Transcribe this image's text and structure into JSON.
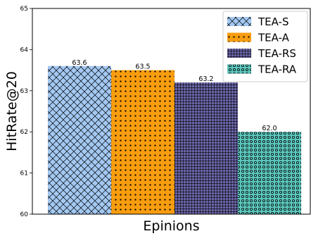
{
  "chart_data": {
    "type": "bar",
    "xlabel": "Epinions",
    "ylabel": "HitRate@20",
    "ylim": [
      60,
      65
    ],
    "yticks": [
      60,
      61,
      62,
      63,
      64,
      65
    ],
    "grid": false,
    "legend_position": "top-right",
    "series": [
      {
        "name": "TEA-S",
        "values": [
          63.6
        ],
        "color": "#a3c8f2",
        "hatch": "crosshatch-diagonal",
        "value_label": "63.6"
      },
      {
        "name": "TEA-A",
        "values": [
          63.5
        ],
        "color": "#f79d0f",
        "hatch": "dots",
        "value_label": "63.5"
      },
      {
        "name": "TEA-RS",
        "values": [
          63.2
        ],
        "color": "#6b66a8",
        "hatch": "grid",
        "value_label": "63.2"
      },
      {
        "name": "TEA-RA",
        "values": [
          62.0
        ],
        "color": "#5cc7bd",
        "hatch": "rings",
        "value_label": "62.0"
      }
    ]
  }
}
